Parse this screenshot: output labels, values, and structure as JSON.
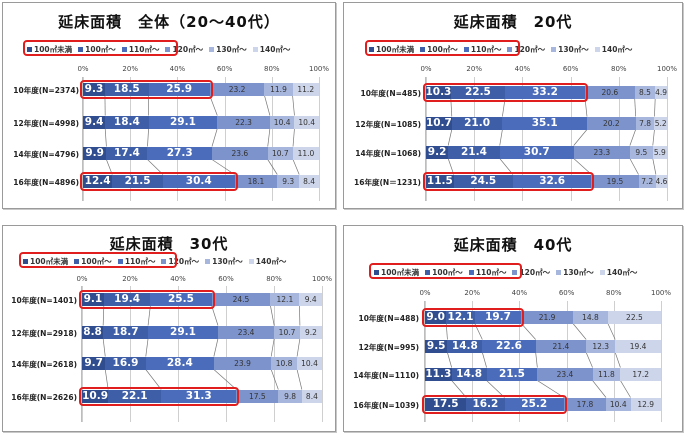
{
  "legend": {
    "items": [
      "100㎡未満",
      "100㎡〜",
      "110㎡〜",
      "120㎡〜",
      "130㎡〜",
      "140㎡〜"
    ],
    "colors": [
      "#2f4d8f",
      "#3e5fa8",
      "#4a6cba",
      "#7d93cc",
      "#a7b6dc",
      "#cdd5ea"
    ],
    "highlight_color": "#e01e1e"
  },
  "axis": {
    "ticks": [
      "0%",
      "20%",
      "40%",
      "60%",
      "80%",
      "100%"
    ]
  },
  "chart_data": [
    {
      "type": "bar",
      "stacked": true,
      "orientation": "horizontal",
      "title": "延床面積　全体（20〜40代）",
      "categories": [
        "10年度(N=2374)",
        "12年度(N=4998)",
        "14年度(N=4796)",
        "16年度(N=4896)"
      ],
      "series": [
        {
          "name": "100㎡未満",
          "values": [
            9.3,
            9.4,
            9.9,
            12.4
          ]
        },
        {
          "name": "100㎡〜",
          "values": [
            18.5,
            18.4,
            17.4,
            21.5
          ]
        },
        {
          "name": "110㎡〜",
          "values": [
            25.9,
            29.1,
            27.3,
            30.4
          ]
        },
        {
          "name": "120㎡〜",
          "values": [
            23.2,
            22.3,
            23.6,
            18.1
          ]
        },
        {
          "name": "130㎡〜",
          "values": [
            11.9,
            10.4,
            10.7,
            9.3
          ]
        },
        {
          "name": "140㎡〜",
          "values": [
            11.2,
            10.4,
            11.0,
            8.4
          ]
        }
      ],
      "highlighted_rows": [
        0,
        3
      ],
      "xlim": [
        0,
        100
      ],
      "xlabel": "",
      "ylabel": ""
    },
    {
      "type": "bar",
      "stacked": true,
      "orientation": "horizontal",
      "title": "延床面積　20代",
      "categories": [
        "10年度(N=485)",
        "12年度(N=1085)",
        "14年度(N=1068)",
        "16年度(N＝1231)"
      ],
      "series": [
        {
          "name": "100㎡未満",
          "values": [
            10.3,
            10.7,
            9.2,
            11.5
          ]
        },
        {
          "name": "100㎡〜",
          "values": [
            22.5,
            21.0,
            21.4,
            24.5
          ]
        },
        {
          "name": "110㎡〜",
          "values": [
            33.2,
            35.1,
            30.7,
            32.6
          ]
        },
        {
          "name": "120㎡〜",
          "values": [
            20.6,
            20.2,
            23.3,
            19.5
          ]
        },
        {
          "name": "130㎡〜",
          "values": [
            8.5,
            7.8,
            9.5,
            7.2
          ]
        },
        {
          "name": "140㎡〜",
          "values": [
            4.9,
            5.2,
            5.9,
            4.6
          ]
        }
      ],
      "highlighted_rows": [
        0,
        3
      ],
      "xlim": [
        0,
        100
      ],
      "xlabel": "",
      "ylabel": ""
    },
    {
      "type": "bar",
      "stacked": true,
      "orientation": "horizontal",
      "title": "延床面積　30代",
      "categories": [
        "10年度(N=1401)",
        "12年度(N=2918)",
        "14年度(N=2618)",
        "16年度(N=2626)"
      ],
      "series": [
        {
          "name": "100㎡未満",
          "values": [
            9.1,
            8.8,
            9.7,
            10.9
          ]
        },
        {
          "name": "100㎡〜",
          "values": [
            19.4,
            18.7,
            16.9,
            22.1
          ]
        },
        {
          "name": "110㎡〜",
          "values": [
            25.5,
            29.1,
            28.4,
            31.3
          ]
        },
        {
          "name": "120㎡〜",
          "values": [
            24.5,
            23.4,
            23.9,
            17.5
          ]
        },
        {
          "name": "130㎡〜",
          "values": [
            12.1,
            10.7,
            10.8,
            9.8
          ]
        },
        {
          "name": "140㎡〜",
          "values": [
            9.4,
            9.2,
            10.4,
            8.4
          ]
        }
      ],
      "highlighted_rows": [
        0,
        3
      ],
      "xlim": [
        0,
        100
      ],
      "xlabel": "",
      "ylabel": ""
    },
    {
      "type": "bar",
      "stacked": true,
      "orientation": "horizontal",
      "title": "延床面積　40代",
      "categories": [
        "10年度(N=488)",
        "12年度(N=995)",
        "14年度(N=1110)",
        "16年度(N=1039)"
      ],
      "series": [
        {
          "name": "100㎡未満",
          "values": [
            9.0,
            9.5,
            11.3,
            17.5
          ]
        },
        {
          "name": "100㎡〜",
          "values": [
            12.1,
            14.8,
            14.8,
            16.2
          ]
        },
        {
          "name": "110㎡〜",
          "values": [
            19.7,
            22.6,
            21.5,
            25.2
          ]
        },
        {
          "name": "120㎡〜",
          "values": [
            21.9,
            21.4,
            23.4,
            17.8
          ]
        },
        {
          "name": "130㎡〜",
          "values": [
            14.8,
            12.3,
            11.8,
            10.4
          ]
        },
        {
          "name": "140㎡〜",
          "values": [
            22.5,
            19.4,
            17.2,
            12.9
          ]
        }
      ],
      "highlighted_rows": [
        0,
        3
      ],
      "xlim": [
        0,
        100
      ],
      "xlabel": "",
      "ylabel": ""
    }
  ]
}
